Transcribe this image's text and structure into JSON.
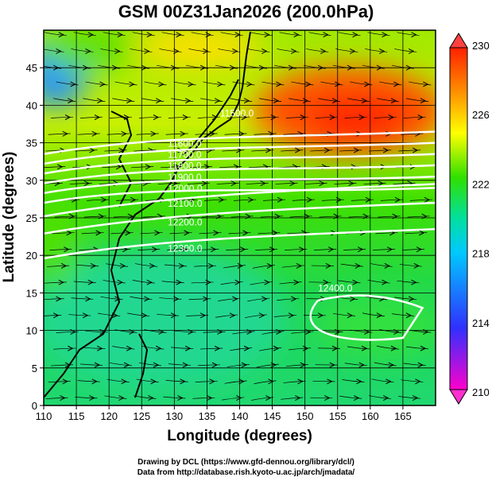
{
  "title": "GSM 00Z31Jan2026 (200.0hPa)",
  "xlabel": "Longitude (degrees)",
  "ylabel": "Latitude  (degrees)",
  "credits": [
    "Drawing by DCL (https://www.gfd-dennou.org/library/dcl/)",
    "Data from http://database.rish.kyoto-u.ac.jp/arch/jmadata/"
  ],
  "chart_data": {
    "type": "map",
    "xlim": [
      110,
      170
    ],
    "ylim": [
      0,
      50
    ],
    "xticks": [
      "110",
      "115",
      "120",
      "125",
      "130",
      "135",
      "140",
      "145",
      "150",
      "155",
      "160",
      "165"
    ],
    "yticks": [
      "0",
      "5",
      "10",
      "15",
      "20",
      "25",
      "30",
      "35",
      "40",
      "45"
    ],
    "colorbar": {
      "ticks": [
        "230",
        "226",
        "222",
        "218",
        "214",
        "210"
      ],
      "range": [
        210,
        230
      ],
      "colors": [
        "#ff00cc",
        "#3030ff",
        "#00d0ff",
        "#00e0a0",
        "#30e000",
        "#ffff00",
        "#ff9000",
        "#ff2000"
      ]
    },
    "contours": [
      {
        "label": "11500.0",
        "lat": 37.5
      },
      {
        "label": "11600.0",
        "lat": 36.0
      },
      {
        "label": "11700.0",
        "lat": 34.5
      },
      {
        "label": "11800.0",
        "lat": 33.0
      },
      {
        "label": "11900.0",
        "lat": 31.5
      },
      {
        "label": "12000.0",
        "lat": 30.0
      },
      {
        "label": "12100.0",
        "lat": 28.0
      },
      {
        "label": "12200.0",
        "lat": 25.5
      },
      {
        "label": "12300.0",
        "lat": 22.0
      },
      {
        "label": "12400.0",
        "lat": 16.0
      }
    ]
  }
}
